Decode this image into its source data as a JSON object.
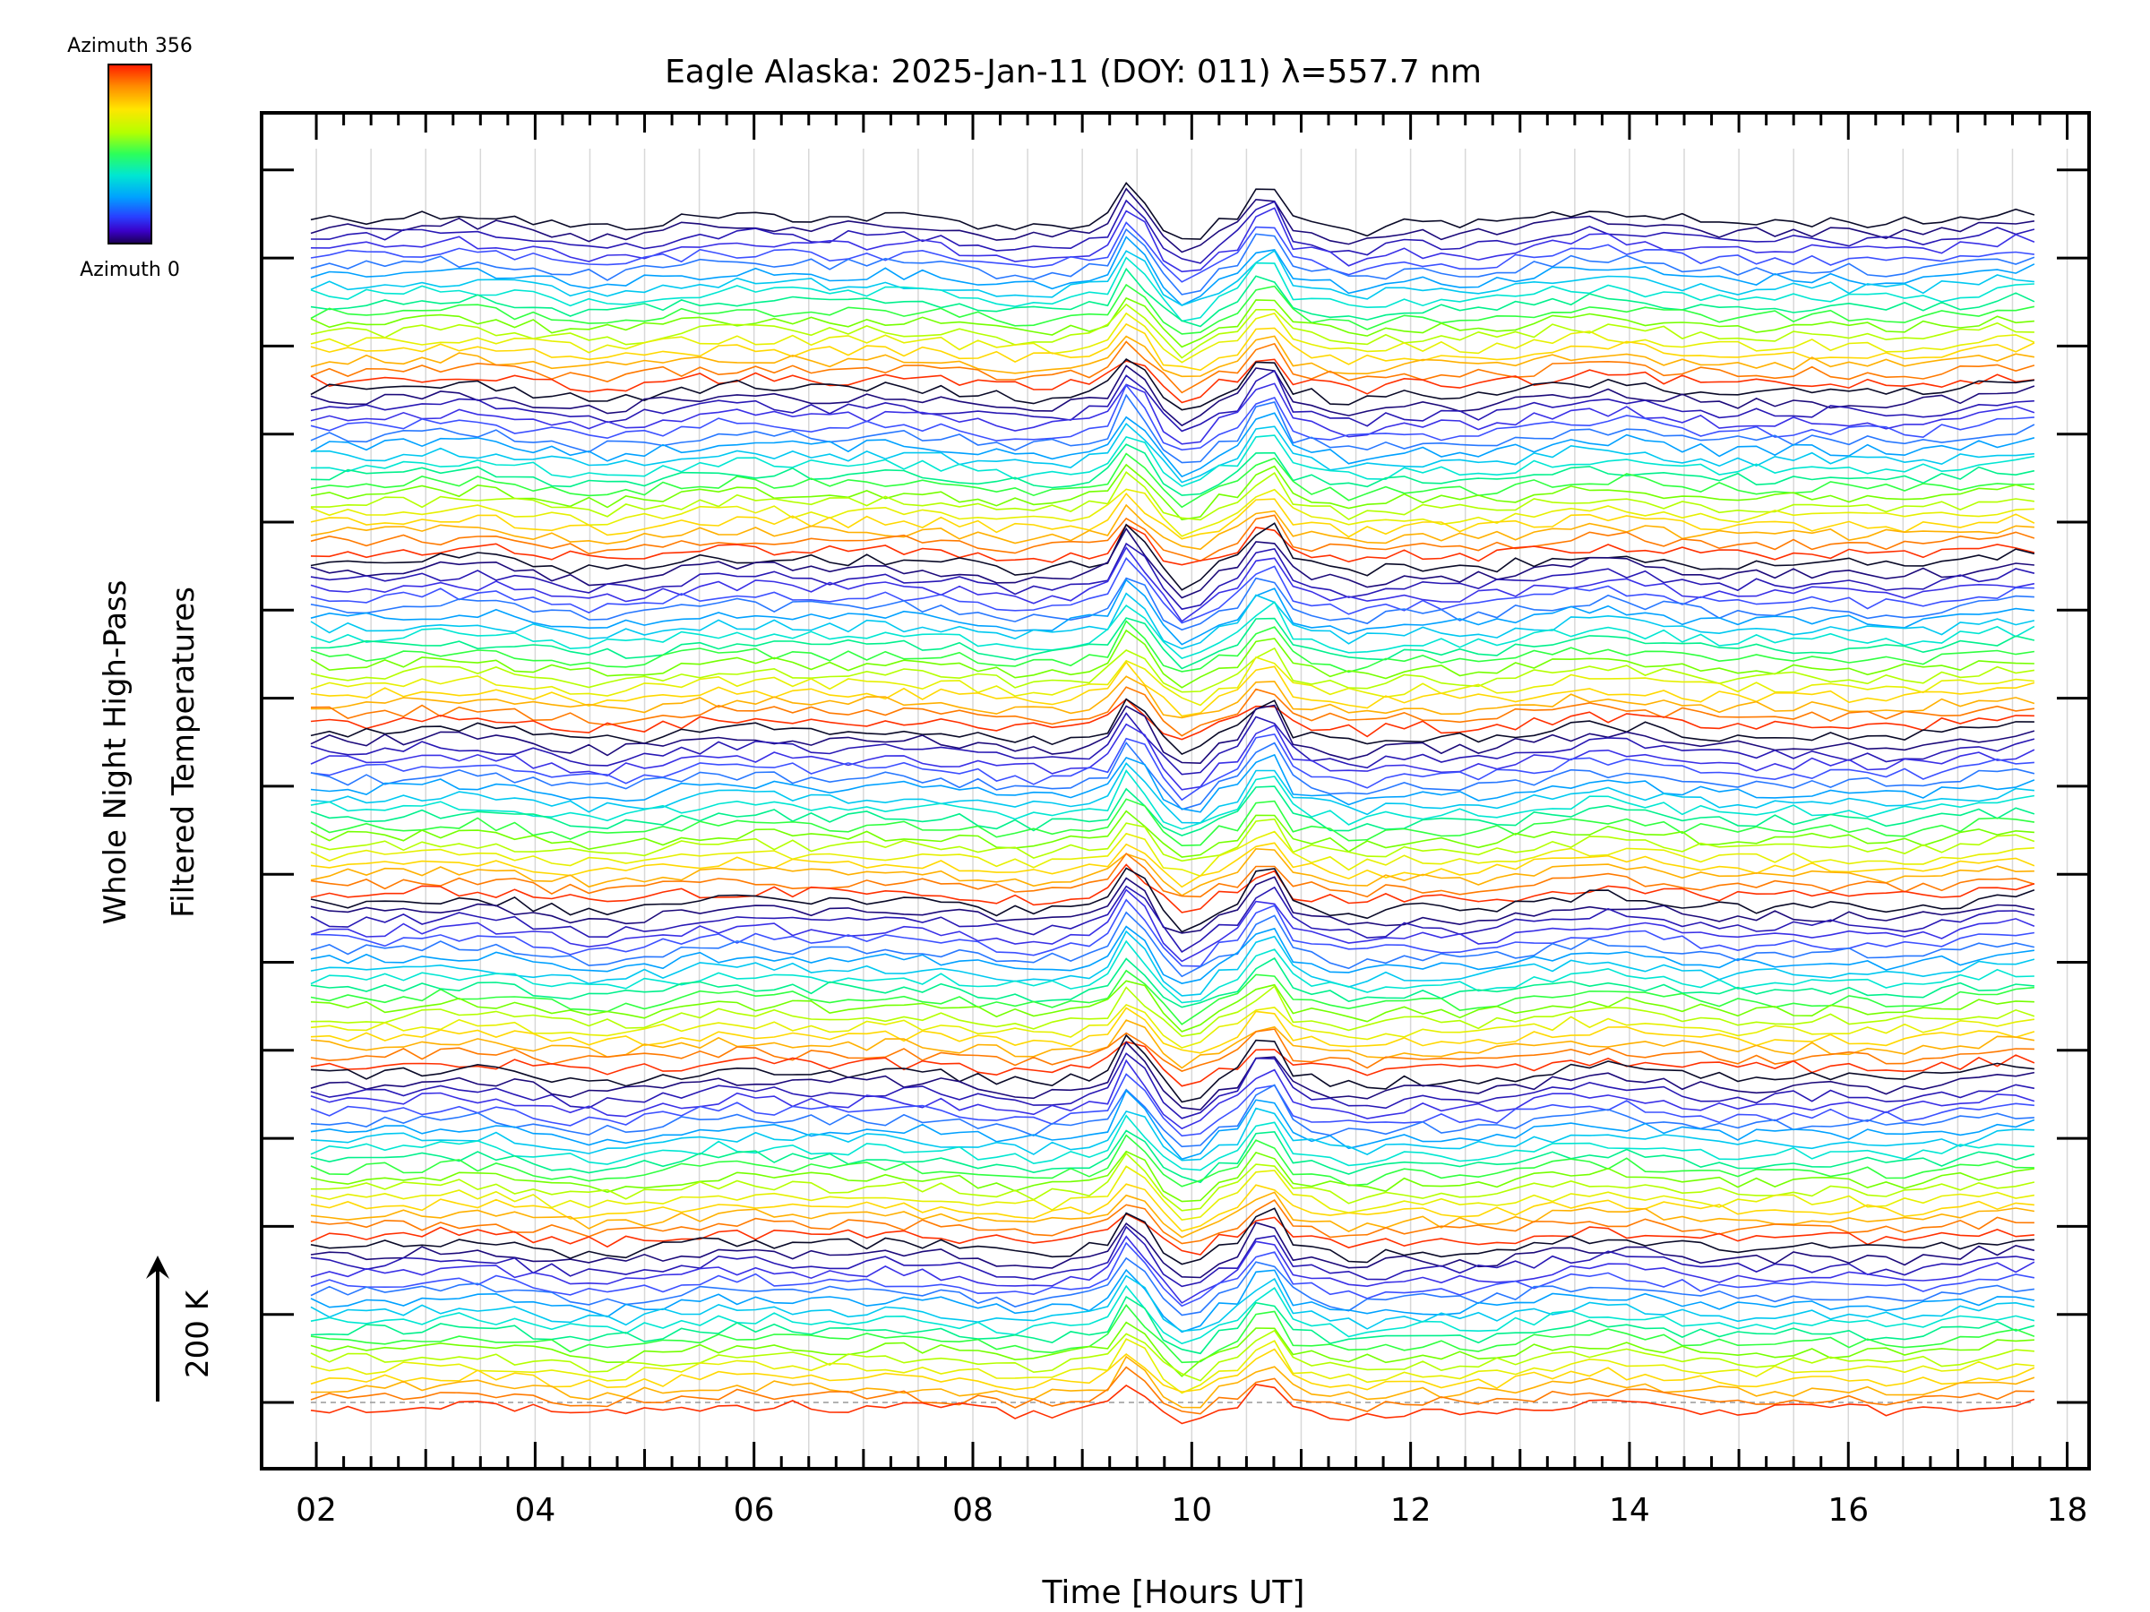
{
  "chart_data": {
    "type": "line",
    "title": "Eagle Alaska: 2025-Jan-11 (DOY: 011) λ=557.7 nm",
    "xlabel": "Time [Hours UT]",
    "ylabel_line1": "Whole Night High-Pass",
    "ylabel_line2": "Filtered Temperatures",
    "xlim": [
      1.5,
      18.2
    ],
    "x_ticks": [
      "02",
      "04",
      "06",
      "08",
      "10",
      "12",
      "14",
      "16",
      "18"
    ],
    "x_tick_values": [
      2,
      4,
      6,
      8,
      10,
      12,
      14,
      16,
      18
    ],
    "scale_label": "200 K",
    "colorbar": {
      "top_label": "Azimuth 356",
      "bottom_label": "Azimuth 0",
      "colors": [
        "#ff1a00",
        "#ff8a00",
        "#ffe600",
        "#b4ff00",
        "#2cff5a",
        "#00e6d2",
        "#00a2ff",
        "#2840ff",
        "#3a00c8",
        "#1a0050"
      ]
    },
    "grid": true,
    "time_range": [
      1.95,
      17.7
    ],
    "groups": 7,
    "traces_per_group": 18,
    "line_colors_by_azimuth": [
      "#ff3000",
      "#ff7a00",
      "#ffb000",
      "#ffd800",
      "#e6f000",
      "#b4ff00",
      "#74ff00",
      "#30ff40",
      "#00f08c",
      "#00e6d2",
      "#00c8f0",
      "#00a0ff",
      "#2878ff",
      "#3c50ff",
      "#3a30e6",
      "#2818b4",
      "#1c0a7a",
      "#0a0a28"
    ]
  }
}
